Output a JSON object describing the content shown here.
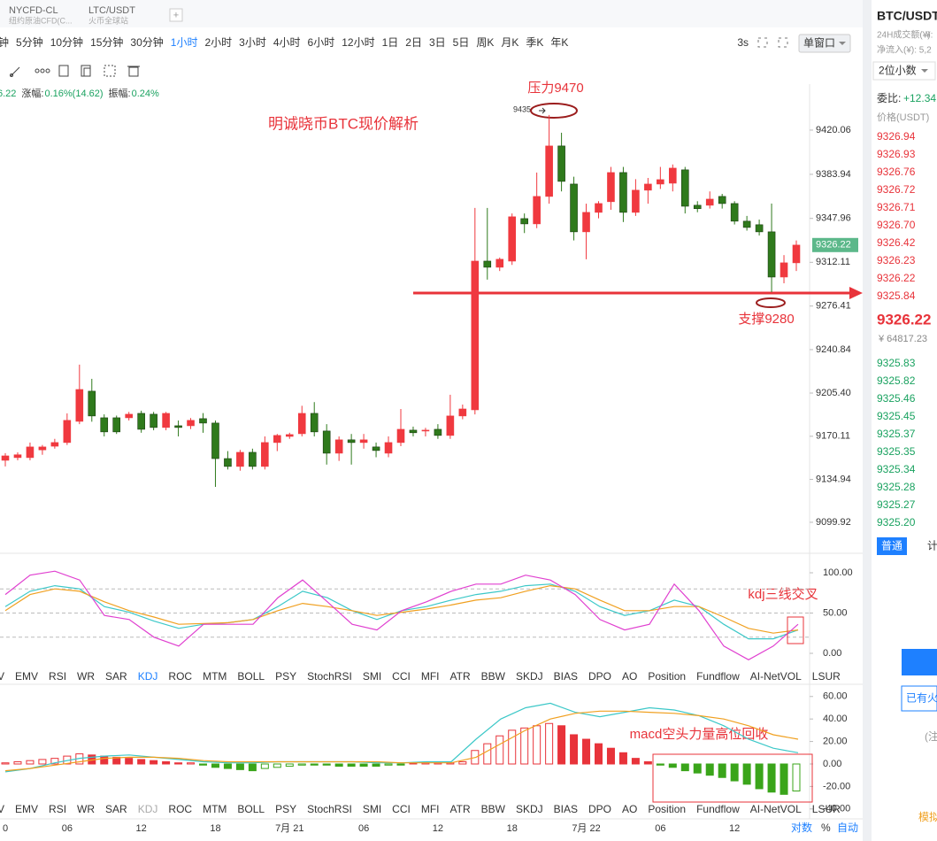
{
  "tabs": [
    {
      "name": "NYCFD-CL",
      "sub": "纽约原油CFD(C..."
    },
    {
      "name": "LTC/USDT",
      "sub": "火币全球站"
    }
  ],
  "timeframes": [
    "钟",
    "5分钟",
    "10分钟",
    "15分钟",
    "30分钟",
    "1小时",
    "2小时",
    "3小时",
    "4小时",
    "6小时",
    "12小时",
    "1日",
    "2日",
    "3日",
    "5日",
    "周K",
    "月K",
    "季K",
    "年K"
  ],
  "active_timeframe": "1小时",
  "refresh": "3s",
  "window_button": "单窗口",
  "stats": {
    "price": "6.22",
    "change_label": "涨幅:",
    "change": "0.16%(14.62)",
    "amplitude_label": "振幅:",
    "amplitude": "0.24%"
  },
  "indicator_tabs": [
    "V",
    "EMV",
    "RSI",
    "WR",
    "SAR",
    "KDJ",
    "ROC",
    "MTM",
    "BOLL",
    "PSY",
    "StochRSI",
    "SMI",
    "CCI",
    "MFI",
    "ATR",
    "BBW",
    "SKDJ",
    "BIAS",
    "DPO",
    "AO",
    "Position",
    "Fundflow",
    "AI-NetVOL",
    "LSUR"
  ],
  "active_indicator": "KDJ",
  "axis_buttons": [
    "对数",
    "%",
    "自动"
  ],
  "chart_data": [
    {
      "type": "candlestick",
      "up_color": "#f0393f",
      "down_color": "#2f7a1c",
      "categories": [
        "0",
        null,
        null,
        null,
        null,
        "06",
        null,
        null,
        null,
        null,
        null,
        "12",
        null,
        null,
        null,
        null,
        null,
        "18",
        null,
        null,
        null,
        null,
        null,
        "7月 21",
        null,
        null,
        null,
        null,
        null,
        "06",
        null,
        null,
        null,
        null,
        null,
        "12",
        null,
        null,
        null,
        null,
        null,
        "18",
        null,
        null,
        null,
        null,
        null,
        "7月 22",
        null,
        null,
        null,
        null,
        null,
        "06",
        null,
        null,
        null,
        null,
        null,
        "12",
        null,
        null,
        null,
        null,
        null
      ],
      "values": [
        [
          9150.5,
          9156.3,
          9145.5,
          9154.1
        ],
        [
          9152.7,
          9157.0,
          9150.5,
          9155.0
        ],
        [
          9152.7,
          9165.0,
          9150.5,
          9161.4
        ],
        [
          9159.0,
          9163.0,
          9155.0,
          9161.4
        ],
        [
          9162.0,
          9168.0,
          9160.0,
          9165.0
        ],
        [
          9165.0,
          9188.8,
          9163.0,
          9183.1
        ],
        [
          9182.3,
          9228.6,
          9180.0,
          9208.3
        ],
        [
          9206.9,
          9217.0,
          9182.0,
          9186.7
        ],
        [
          9185.2,
          9188.0,
          9170.0,
          9173.7
        ],
        [
          9185.2,
          9187.0,
          9172.0,
          9173.7
        ],
        [
          9185.2,
          9190.0,
          9183.0,
          9188.1
        ],
        [
          9188.8,
          9191.0,
          9173.0,
          9175.8
        ],
        [
          9188.1,
          9190.0,
          9175.0,
          9177.3
        ],
        [
          9177.3,
          9190.0,
          9175.0,
          9188.8
        ],
        [
          9178.7,
          9183.0,
          9170.0,
          9177.3
        ],
        [
          9178.7,
          9185.0,
          9176.0,
          9183.1
        ],
        [
          9184.5,
          9189.0,
          9173.0,
          9180.9
        ],
        [
          9180.9,
          9183.0,
          9128.8,
          9151.9
        ],
        [
          9151.9,
          9158.0,
          9143.0,
          9145.5
        ],
        [
          9145.5,
          9159.0,
          9142.0,
          9157.0
        ],
        [
          9157.0,
          9160.0,
          9143.0,
          9145.5
        ],
        [
          9145.5,
          9170.0,
          9143.0,
          9165.0
        ],
        [
          9165.0,
          9172.0,
          9158.0,
          9170.8
        ],
        [
          9170.0,
          9173.0,
          9168.0,
          9171.5
        ],
        [
          9172.2,
          9195.0,
          9170.0,
          9188.8
        ],
        [
          9188.8,
          9198.0,
          9170.0,
          9173.7
        ],
        [
          9174.4,
          9180.0,
          9147.0,
          9156.3
        ],
        [
          9156.3,
          9170.0,
          9150.0,
          9167.2
        ],
        [
          9167.2,
          9172.0,
          9147.0,
          9165.0
        ],
        [
          9165.0,
          9172.0,
          9160.0,
          9167.2
        ],
        [
          9161.4,
          9165.0,
          9153.0,
          9158.5
        ],
        [
          9156.3,
          9170.0,
          9153.0,
          9165.0
        ],
        [
          9165.0,
          9192.4,
          9162.0,
          9175.8
        ],
        [
          9175.1,
          9178.0,
          9170.0,
          9173.0
        ],
        [
          9174.4,
          9177.0,
          9170.0,
          9175.1
        ],
        [
          9175.8,
          9180.0,
          9168.0,
          9170.8
        ],
        [
          9170.8,
          9204.0,
          9168.0,
          9186.7
        ],
        [
          9186.7,
          9196.0,
          9184.0,
          9192.4
        ],
        [
          9191.7,
          9356.5,
          9188.0,
          9313.1
        ],
        [
          9313.1,
          9356.5,
          9298.0,
          9308.1
        ],
        [
          9308.1,
          9316.0,
          9305.0,
          9314.6
        ],
        [
          9313.1,
          9352.0,
          9310.0,
          9349.3
        ],
        [
          9347.8,
          9352.0,
          9336.0,
          9343.5
        ],
        [
          9343.5,
          9385.4,
          9340.0,
          9365.9
        ],
        [
          9365.9,
          9432.4,
          9360.0,
          9407.1
        ],
        [
          9407.1,
          9417.9,
          9370.0,
          9378.2
        ],
        [
          9376.0,
          9382.0,
          9330.0,
          9337.0
        ],
        [
          9337.0,
          9360.0,
          9314.6,
          9352.9
        ],
        [
          9352.9,
          9362.0,
          9348.0,
          9360.1
        ],
        [
          9361.6,
          9390.0,
          9355.0,
          9385.4
        ],
        [
          9385.4,
          9390.0,
          9345.0,
          9352.9
        ],
        [
          9352.9,
          9380.0,
          9350.0,
          9371.0
        ],
        [
          9371.0,
          9381.0,
          9360.0,
          9376.0
        ],
        [
          9376.0,
          9390.0,
          9372.0,
          9379.6
        ],
        [
          9376.7,
          9392.0,
          9370.0,
          9389.0
        ],
        [
          9387.6,
          9390.0,
          9352.0,
          9357.9
        ],
        [
          9358.7,
          9362.0,
          9353.0,
          9355.9
        ],
        [
          9358.7,
          9370.0,
          9356.0,
          9363.7
        ],
        [
          9365.9,
          9368.0,
          9356.0,
          9360.1
        ],
        [
          9360.1,
          9362.0,
          9343.0,
          9345.7
        ],
        [
          9345.7,
          9350.0,
          9338.0,
          9340.6
        ],
        [
          9342.8,
          9347.0,
          9334.0,
          9337.0
        ],
        [
          9337.0,
          9360.1,
          9287.8,
          9300.1
        ],
        [
          9300.1,
          9318.0,
          9295.0,
          9311.7
        ],
        [
          9311.7,
          9330.0,
          9305.0,
          9326.2
        ]
      ],
      "ylim": [
        9078.2,
        9457.6
      ],
      "yticks": [
        9420.06,
        9383.94,
        9347.96,
        9312.11,
        9276.41,
        9240.84,
        {
          "value": 9205.4,
          "label": "9205.40"
        },
        9170.11,
        9134.94,
        9099.92
      ],
      "last_price": 9326.22,
      "last_price_color": "#5cb88a",
      "title_note": "明诚晓币BTC现价解析",
      "resistance": "压力9470",
      "resistance_marker": "9435",
      "support": "支撑9280"
    },
    {
      "type": "line",
      "series": [
        {
          "color": "#3cc8c8",
          "values": [
            58,
            77,
            84,
            80,
            58,
            51,
            40,
            31,
            36,
            38,
            42,
            58,
            77,
            69,
            53,
            42,
            53,
            58,
            66,
            73,
            77,
            84,
            86,
            77,
            58,
            47,
            53,
            66,
            58,
            36,
            18,
            18,
            29
          ]
        },
        {
          "color": "#f0a020",
          "values": [
            53,
            73,
            80,
            77,
            64,
            53,
            45,
            36,
            37,
            38,
            42,
            53,
            62,
            58,
            53,
            47,
            51,
            55,
            60,
            66,
            69,
            77,
            84,
            80,
            66,
            53,
            53,
            58,
            58,
            45,
            31,
            25,
            29
          ]
        },
        {
          "color": "#e040d0",
          "values": [
            73,
            97,
            102,
            91,
            47,
            42,
            20,
            9,
            36,
            36,
            36,
            69,
            91,
            64,
            36,
            29,
            53,
            64,
            77,
            86,
            86,
            97,
            91,
            73,
            42,
            29,
            36,
            86,
            53,
            9,
            -8,
            9,
            36
          ]
        }
      ],
      "ylim": [
        -18.7,
        120.9
      ],
      "yticks": [
        {
          "value": 100,
          "label": "100.00"
        },
        {
          "value": 50,
          "label": "50.00"
        },
        {
          "value": 0,
          "label": "0.00"
        }
      ],
      "reference_lines": [
        80,
        50,
        20
      ],
      "annotation": "kdj三线交叉"
    },
    {
      "type": "macd",
      "series": [
        {
          "color": "#3cc8c8",
          "values": [
            -7,
            -4,
            1,
            5,
            7,
            8,
            6,
            4,
            2,
            1,
            1,
            2,
            2,
            2,
            2,
            1,
            1,
            2,
            2,
            22,
            40,
            50,
            54,
            46,
            42,
            46,
            50,
            48,
            43,
            34,
            22,
            14,
            10
          ]
        },
        {
          "color": "#f0a020",
          "values": [
            -6,
            -4,
            -1,
            2,
            5,
            6,
            6,
            5,
            3,
            2,
            2,
            2,
            2,
            2,
            2,
            2,
            1,
            1,
            1,
            6,
            18,
            30,
            40,
            45,
            47,
            47,
            46,
            45,
            43,
            40,
            34,
            26,
            22
          ]
        }
      ],
      "histogram": {
        "up_color": "#e8333a",
        "down_color": "#3aa51a",
        "values": [
          1,
          2,
          3,
          4,
          5,
          7,
          9,
          8,
          7,
          6,
          5,
          4,
          3,
          2,
          1,
          1,
          -1,
          -3,
          -4,
          -5,
          -6,
          -4,
          -3,
          -2,
          -1,
          -1,
          -1,
          -2,
          -2,
          -2,
          -2,
          -1,
          -1,
          0.5,
          1,
          1,
          1,
          2,
          12,
          18,
          25,
          30,
          32,
          34,
          36,
          34,
          26,
          22,
          18,
          14,
          10,
          5,
          2,
          -1,
          -3,
          -6,
          -8,
          -10,
          -12,
          -15,
          -18,
          -22,
          -25,
          -27,
          -24
        ]
      },
      "ylim": [
        -48.8,
        66.9
      ],
      "yticks": [
        {
          "value": 60,
          "label": "60.00"
        },
        {
          "value": 40,
          "label": "40.00"
        },
        {
          "value": 20,
          "label": "20.00"
        },
        {
          "value": 0,
          "label": "0.00"
        },
        {
          "value": -20,
          "label": "-20.00"
        },
        {
          "value": -40,
          "label": "-40.00"
        }
      ],
      "annotation": "macd空头力量高位回收"
    }
  ],
  "panel": {
    "symbol": "BTC/USDT",
    "volume_label": "24H成交额(¥):",
    "volume_value": "¥",
    "inflow": "净流入(¥): 5,2",
    "decimals": "2位小数",
    "ratio_label": "委比:",
    "ratio": "+12.34",
    "price_header": "价格(USDT)",
    "asks": [
      "9326.94",
      "9326.93",
      "9326.76",
      "9326.72",
      "9326.71",
      "9326.70",
      "9326.42",
      "9326.23",
      "9326.22",
      "9325.84"
    ],
    "last": "9326.22",
    "last_cny": "¥ 64817.23",
    "bids": [
      "9325.83",
      "9325.82",
      "9325.46",
      "9325.45",
      "9325.37",
      "9325.35",
      "9325.34",
      "9325.28",
      "9325.27",
      "9325.20"
    ],
    "order_tab": "普通",
    "order_tab2": "计",
    "held": "已有火",
    "note": "(注",
    "demo": "模拟"
  }
}
